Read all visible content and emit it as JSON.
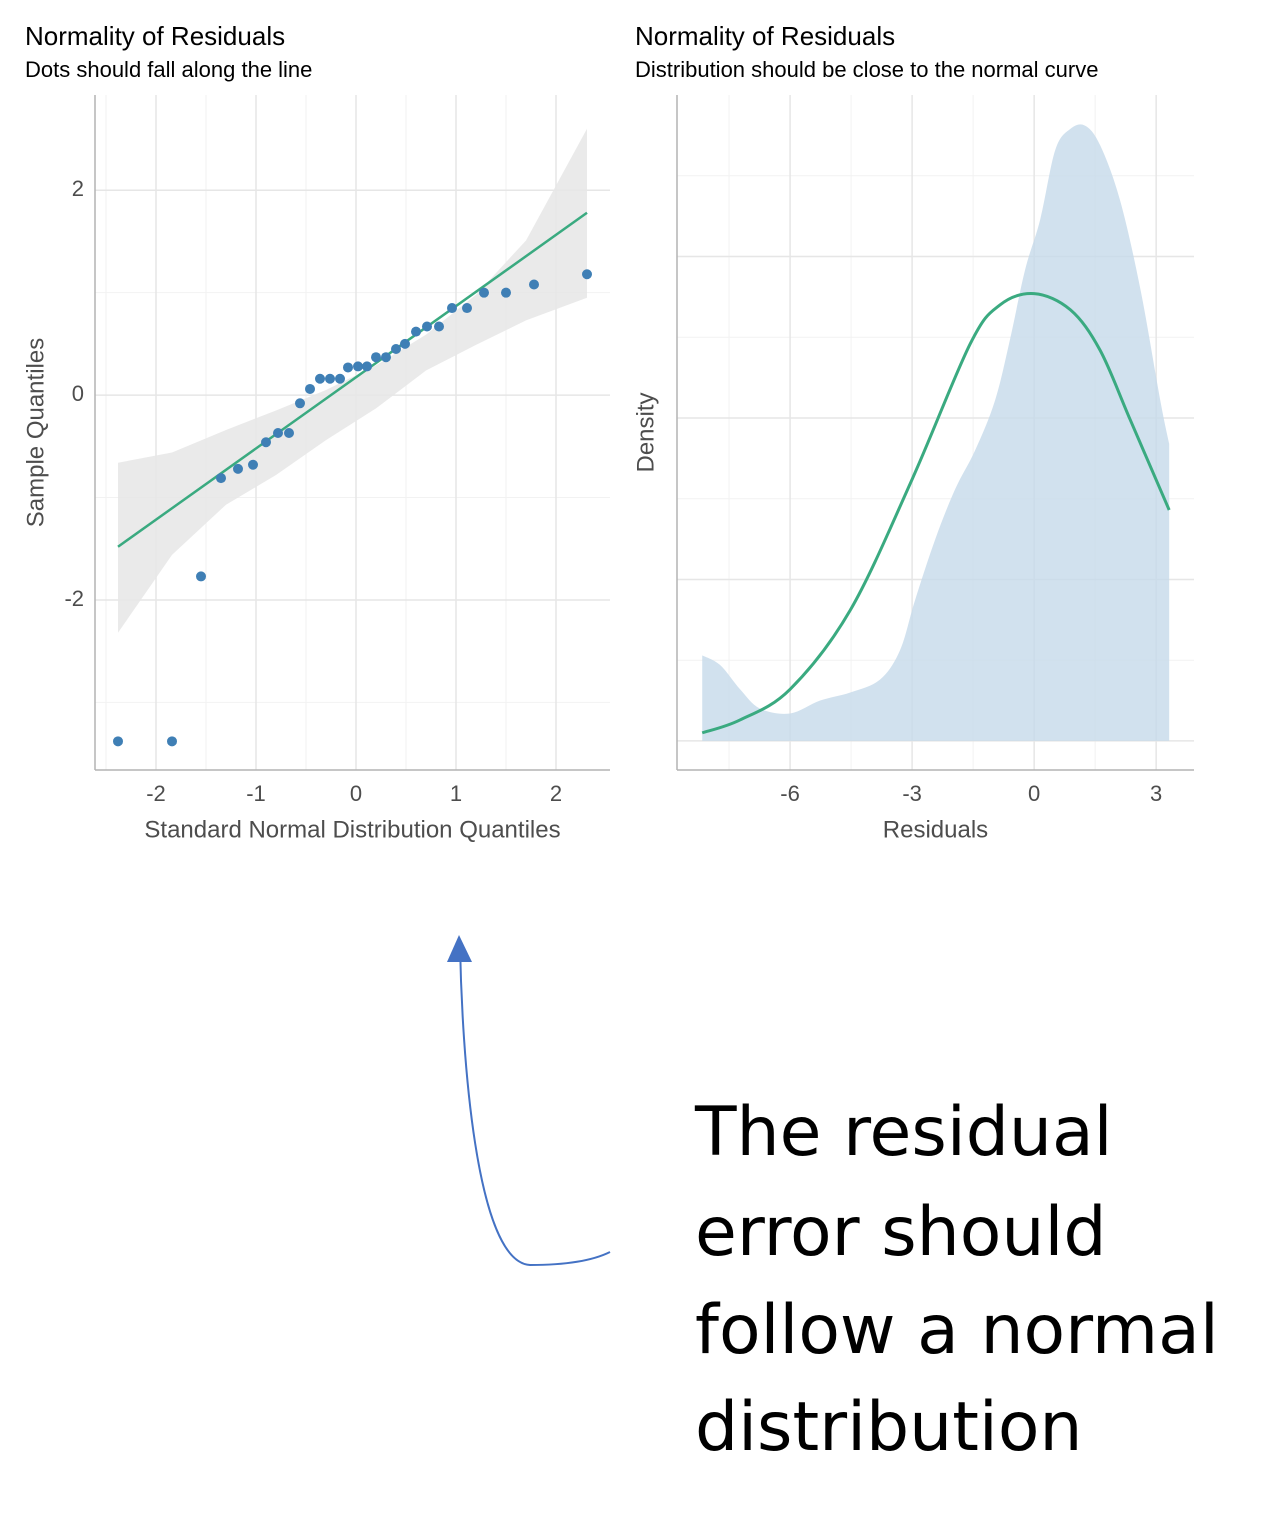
{
  "chart_data": [
    {
      "type": "scatter",
      "title": "Normality of Residuals",
      "subtitle": "Dots should fall along the line",
      "xlabel": "Standard Normal Distribution Quantiles",
      "ylabel": "Sample Quantiles",
      "x": [
        -2.38,
        -1.84,
        -1.55,
        -1.35,
        -1.18,
        -1.03,
        -0.9,
        -0.78,
        -0.67,
        -0.56,
        -0.46,
        -0.36,
        -0.26,
        -0.16,
        -0.08,
        0.02,
        0.11,
        0.2,
        0.3,
        0.4,
        0.49,
        0.6,
        0.71,
        0.83,
        0.96,
        1.11,
        1.28,
        1.5,
        1.78,
        2.31
      ],
      "y": [
        -3.38,
        -3.38,
        -1.77,
        -0.81,
        -0.72,
        -0.68,
        -0.46,
        -0.37,
        -0.37,
        -0.08,
        0.06,
        0.16,
        0.16,
        0.16,
        0.27,
        0.28,
        0.28,
        0.37,
        0.37,
        0.45,
        0.5,
        0.62,
        0.67,
        0.67,
        0.85,
        0.85,
        1.0,
        1.0,
        1.08,
        1.18
      ],
      "color": "#3f7fb5",
      "reference_line": {
        "x": [
          -2.38,
          2.31
        ],
        "y": [
          -1.48,
          1.78
        ],
        "color": "#3aaa80"
      },
      "band": {
        "x": [
          -2.38,
          -1.84,
          -1.3,
          -0.8,
          -0.3,
          0.2,
          0.7,
          1.2,
          1.7,
          2.31
        ],
        "upper": [
          -0.66,
          -0.56,
          -0.34,
          -0.15,
          0.05,
          0.29,
          0.59,
          0.98,
          1.51,
          2.6
        ],
        "lower": [
          -2.32,
          -1.56,
          -1.07,
          -0.78,
          -0.44,
          -0.13,
          0.24,
          0.49,
          0.73,
          0.95
        ],
        "color": "#e6e6e6"
      },
      "xlim": [
        -2.61,
        2.54
      ],
      "ylim": [
        -3.66,
        2.93
      ],
      "xticks": [
        -2,
        -1,
        0,
        1,
        2
      ],
      "yticks": [
        -2,
        0,
        2
      ],
      "minor_xticks": [
        -2.5,
        -1.5,
        -0.5,
        0.5,
        1.5
      ],
      "minor_yticks": [
        -3,
        -1,
        1
      ],
      "grid": true
    },
    {
      "type": "density",
      "title": "Normality of Residuals",
      "subtitle": "Distribution should be close to the normal curve",
      "xlabel": "Residuals",
      "ylabel": "Density",
      "density": {
        "x": [
          -8.16,
          -7.72,
          -7.23,
          -6.74,
          -6.0,
          -5.26,
          -4.52,
          -3.79,
          -3.3,
          -2.93,
          -2.43,
          -1.94,
          -1.45,
          -0.96,
          -0.59,
          -0.22,
          0.15,
          0.52,
          0.89,
          1.25,
          1.62,
          2.11,
          2.61,
          3.1,
          3.32
        ],
        "y": [
          0.053,
          0.047,
          0.032,
          0.02,
          0.017,
          0.025,
          0.03,
          0.038,
          0.056,
          0.087,
          0.125,
          0.156,
          0.18,
          0.211,
          0.249,
          0.292,
          0.323,
          0.366,
          0.379,
          0.381,
          0.369,
          0.335,
          0.28,
          0.211,
          0.184
        ],
        "color": "#c6d9ea"
      },
      "normal_curve": {
        "x": [
          -8.16,
          -7.23,
          -6.0,
          -4.52,
          -3.0,
          -1.57,
          -0.84,
          0,
          0.89,
          1.62,
          2.36,
          3.32
        ],
        "y": [
          0.005,
          0.013,
          0.032,
          0.081,
          0.162,
          0.246,
          0.27,
          0.277,
          0.267,
          0.242,
          0.199,
          0.143
        ],
        "color": "#3aaa80"
      },
      "xlim": [
        -8.78,
        3.93
      ],
      "ylim": [
        -0.018,
        0.4
      ],
      "xticks": [
        -6,
        -3,
        0,
        3
      ],
      "ygrid": [
        0,
        0.1,
        0.2,
        0.3
      ],
      "minor_xticks": [
        -7.5,
        -4.5,
        -1.5,
        1.5
      ],
      "minor_yticks": [
        0.05,
        0.15,
        0.25,
        0.35
      ],
      "grid": true
    }
  ],
  "annotation": {
    "lines": [
      "The residual",
      "error should",
      "follow a normal",
      "distribution"
    ]
  }
}
